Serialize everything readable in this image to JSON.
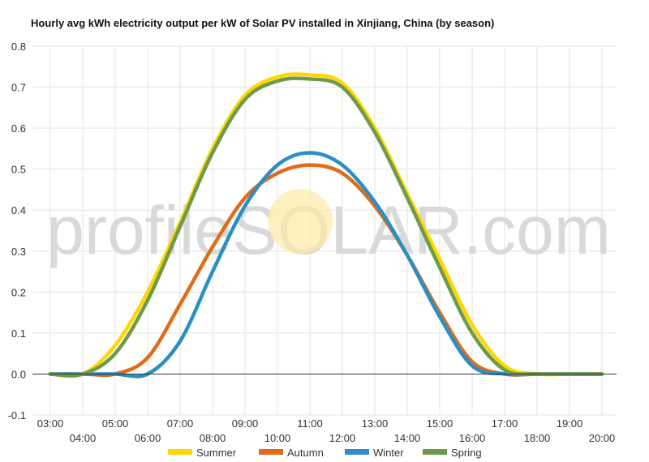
{
  "chart_data": {
    "type": "line",
    "title": "Hourly avg kWh electricity output per kW of Solar PV installed in Xinjiang, China (by season)",
    "watermark": "profileSOLAR.com",
    "xlabel": "",
    "ylabel": "",
    "ylim": [
      -0.1,
      0.8
    ],
    "yticks": [
      "0.8",
      "0.7",
      "0.6",
      "0.5",
      "0.4",
      "0.3",
      "0.2",
      "0.1",
      "0.0",
      "-0.1"
    ],
    "yticks_values": [
      0.8,
      0.7,
      0.6,
      0.5,
      0.4,
      0.3,
      0.2,
      0.1,
      0.0,
      -0.1
    ],
    "x": [
      "03:00",
      "04:00",
      "05:00",
      "06:00",
      "07:00",
      "08:00",
      "09:00",
      "10:00",
      "11:00",
      "12:00",
      "13:00",
      "14:00",
      "15:00",
      "16:00",
      "17:00",
      "18:00",
      "19:00",
      "20:00"
    ],
    "x_row_top": [
      "03:00",
      "05:00",
      "07:00",
      "09:00",
      "11:00",
      "13:00",
      "15:00",
      "17:00",
      "19:00"
    ],
    "x_row_bottom": [
      "04:00",
      "06:00",
      "08:00",
      "10:00",
      "12:00",
      "14:00",
      "16:00",
      "18:00",
      "20:00"
    ],
    "grid": true,
    "legend_position": "bottom",
    "series": [
      {
        "name": "Summer",
        "color": "#FFD700",
        "values": [
          0.0,
          0.0,
          0.07,
          0.2,
          0.37,
          0.55,
          0.68,
          0.725,
          0.73,
          0.71,
          0.6,
          0.44,
          0.28,
          0.12,
          0.02,
          0.0,
          0.0,
          0.0
        ]
      },
      {
        "name": "Autumn",
        "color": "#E06C1A",
        "values": [
          0.0,
          0.0,
          0.0,
          0.04,
          0.17,
          0.31,
          0.43,
          0.49,
          0.51,
          0.49,
          0.41,
          0.29,
          0.15,
          0.03,
          0.0,
          0.0,
          0.0,
          0.0
        ]
      },
      {
        "name": "Winter",
        "color": "#2A8FC4",
        "values": [
          0.0,
          0.0,
          0.0,
          0.0,
          0.08,
          0.25,
          0.41,
          0.51,
          0.54,
          0.51,
          0.42,
          0.29,
          0.14,
          0.02,
          0.0,
          0.0,
          0.0,
          0.0
        ]
      },
      {
        "name": "Spring",
        "color": "#6E9A4A",
        "values": [
          0.0,
          0.0,
          0.05,
          0.18,
          0.36,
          0.54,
          0.67,
          0.715,
          0.72,
          0.7,
          0.59,
          0.43,
          0.26,
          0.1,
          0.01,
          0.0,
          0.0,
          0.0
        ]
      }
    ]
  }
}
